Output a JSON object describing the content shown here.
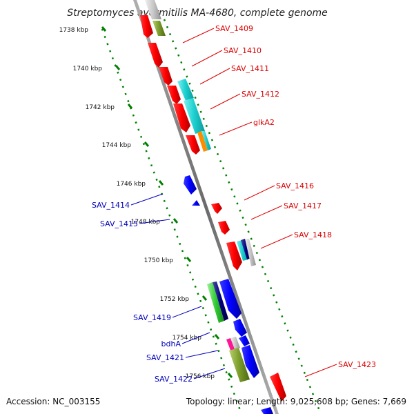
{
  "title": "Streptomyces avermitilis MA-4680, complete genome",
  "ruler_ticks": [
    "1738 kbp",
    "1740 kbp",
    "1742 kbp",
    "1744 kbp",
    "1746 kbp",
    "1748 kbp",
    "1750 kbp",
    "1752 kbp",
    "1754 kbp",
    "1756 kbp"
  ],
  "gene_labels_top": [
    "SAV_1409",
    "SAV_1410",
    "SAV_1411",
    "SAV_1412",
    "glkA2",
    "SAV_1416",
    "SAV_1417",
    "SAV_1418",
    "SAV_1423"
  ],
  "gene_labels_bottom": [
    "SAV_1414",
    "SAV_1415",
    "SAV_1419",
    "bdhA",
    "SAV_1421",
    "SAV_1422"
  ],
  "footer": {
    "accession": "Accession: NC_003155",
    "summary": "Topology: linear; Length: 9,025,608 bp; Genes: 7,669"
  },
  "colors": {
    "top_strand_gene": "#ff0000",
    "bottom_strand_gene": "#0000ff",
    "top_label": "#dd0000",
    "bottom_label": "#0000bb",
    "cyan_domain": "#1ccfcf",
    "orange_domain": "#ff8c00",
    "olive_domain": "#7a9a2a",
    "green_domain": "#33cc33",
    "navy_domain": "#000080",
    "magenta_domain": "#ff1493",
    "axis": "#888888",
    "ruler": "#008000"
  }
}
